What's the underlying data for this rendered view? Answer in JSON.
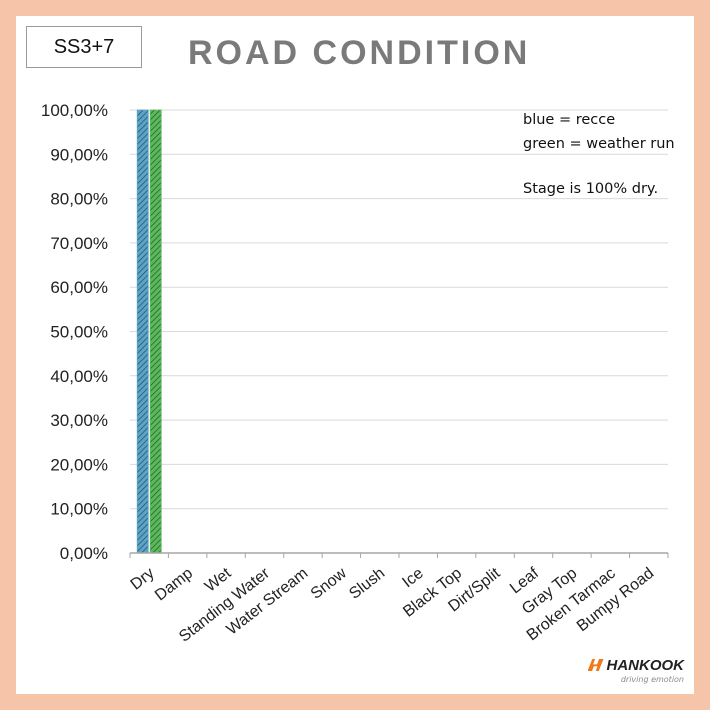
{
  "stage_label": "SS3+7",
  "chart_data": {
    "type": "bar",
    "title": "ROAD CONDITION",
    "categories": [
      "Dry",
      "Damp",
      "Wet",
      "Standing Water",
      "Water Stream",
      "Snow",
      "Slush",
      "Ice",
      "Black Top",
      "Dirt/Split",
      "Leaf",
      "Gray Top",
      "Broken Tarmac",
      "Bumpy Road"
    ],
    "series": [
      {
        "values": [
          100,
          0,
          0,
          0,
          0,
          0,
          0,
          0,
          0,
          0,
          0,
          0,
          0,
          0
        ],
        "color": "#5ba3c7"
      },
      {
        "values": [
          100,
          0,
          0,
          0,
          0,
          0,
          0,
          0,
          0,
          0,
          0,
          0,
          0,
          0
        ],
        "color": "#5cb85c"
      }
    ],
    "ylim": [
      0,
      100
    ],
    "yticks": [
      "0,00%",
      "10,00%",
      "20,00%",
      "30,00%",
      "40,00%",
      "50,00%",
      "60,00%",
      "70,00%",
      "80,00%",
      "90,00%",
      "100,00%"
    ],
    "grid": true,
    "annotations": [
      "blue = recce",
      "green = weather run",
      "Stage is 100% dry."
    ]
  },
  "logo": {
    "name": "HANKOOK",
    "tagline": "driving emotion"
  }
}
